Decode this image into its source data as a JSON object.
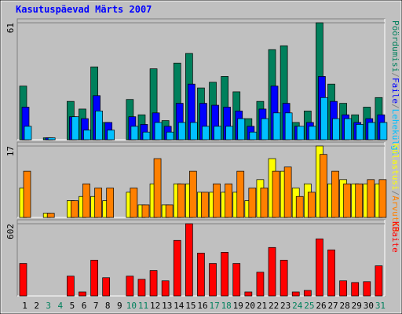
{
  "title": "Kasutuspäevad Märts 2007",
  "legend_separator": " / ",
  "chart_data": [
    {
      "type": "bar",
      "ylim": [
        0,
        61
      ],
      "yticks": [
        61
      ],
      "series": [
        {
          "name": "Pöördumisi",
          "color": "#00805c",
          "values": [
            28,
            0,
            1,
            0,
            20,
            16,
            38,
            9,
            0,
            21,
            13,
            37,
            10,
            40,
            45,
            27,
            30,
            33,
            25,
            11,
            20,
            47,
            49,
            9,
            15,
            61,
            29,
            19,
            13,
            17,
            22
          ]
        },
        {
          "name": "Faile",
          "color": "#0000ff",
          "values": [
            17,
            0,
            1,
            0,
            12,
            11,
            23,
            9,
            0,
            12,
            8,
            14,
            7,
            19,
            29,
            19,
            18,
            17,
            15,
            7,
            16,
            28,
            19,
            7,
            9,
            33,
            20,
            13,
            9,
            11,
            13
          ]
        },
        {
          "name": "Lehekülgi",
          "color": "#00c0ff",
          "values": [
            7,
            0,
            1,
            0,
            12,
            5,
            15,
            5,
            0,
            7,
            4,
            9,
            4,
            9,
            9,
            7,
            7,
            7,
            11,
            4,
            11,
            14,
            14,
            7,
            7,
            22,
            11,
            11,
            8,
            9,
            9
          ]
        }
      ]
    },
    {
      "type": "bar",
      "ylim": [
        0,
        17
      ],
      "yticks": [
        17
      ],
      "series": [
        {
          "name": "Külastusi",
          "color": "#ffff00",
          "values": [
            7,
            0,
            1,
            0,
            4,
            5,
            5,
            4,
            0,
            6,
            3,
            8,
            3,
            8,
            8,
            6,
            6,
            6,
            6,
            4,
            9,
            14,
            11,
            7,
            8,
            17,
            8,
            9,
            8,
            8,
            8
          ]
        },
        {
          "name": "Arvutid",
          "color": "#ff8000",
          "values": [
            11,
            0,
            1,
            0,
            4,
            8,
            7,
            7,
            0,
            7,
            3,
            14,
            3,
            8,
            11,
            6,
            8,
            8,
            11,
            7,
            7,
            11,
            12,
            5,
            6,
            15,
            11,
            8,
            8,
            9,
            9
          ]
        }
      ]
    },
    {
      "type": "bar",
      "ylim": [
        0,
        602
      ],
      "yticks": [
        602
      ],
      "categories": [
        "1",
        "2",
        "3",
        "4",
        "5",
        "6",
        "7",
        "8",
        "9",
        "10",
        "11",
        "12",
        "13",
        "14",
        "15",
        "16",
        "17",
        "18",
        "19",
        "20",
        "21",
        "22",
        "23",
        "24",
        "25",
        "26",
        "27",
        "28",
        "29",
        "30",
        "31"
      ],
      "label_color": "#000000",
      "highlight_color": "#00805c",
      "highlighted": [
        "3",
        "4",
        "10",
        "11",
        "17",
        "18",
        "24",
        "25",
        "31"
      ],
      "series": [
        {
          "name": "KBaite",
          "color": "#ff0000",
          "values": [
            271,
            0,
            0,
            0,
            165,
            33,
            298,
            152,
            0,
            165,
            139,
            212,
            126,
            463,
            602,
            357,
            271,
            364,
            271,
            33,
            198,
            404,
            298,
            33,
            46,
            476,
            384,
            126,
            112,
            119,
            251
          ]
        }
      ]
    }
  ]
}
